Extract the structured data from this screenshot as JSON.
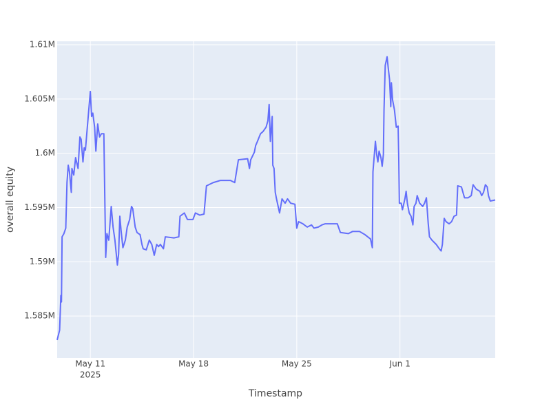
{
  "chart_data": {
    "type": "line",
    "y_label": "overall equity",
    "x_label": "Timestamp",
    "color": "#636efa",
    "grid": true,
    "x": [
      "2025-05-08T18:00",
      "2025-05-08T22:00",
      "2025-05-09T00:00",
      "2025-05-09T01:00",
      "2025-05-09T02:00",
      "2025-05-09T05:00",
      "2025-05-09T08:00",
      "2025-05-09T10:00",
      "2025-05-09T12:00",
      "2025-05-09T14:00",
      "2025-05-09T17:00",
      "2025-05-09T18:00",
      "2025-05-09T21:00",
      "2025-05-10T00:00",
      "2025-05-10T04:00",
      "2025-05-10T07:00",
      "2025-05-10T09:00",
      "2025-05-10T12:00",
      "2025-05-10T14:00",
      "2025-05-10T16:00",
      "2025-05-10T21:00",
      "2025-05-11T00:00",
      "2025-05-11T02:00",
      "2025-05-11T04:00",
      "2025-05-11T07:00",
      "2025-05-11T09:00",
      "2025-05-11T12:00",
      "2025-05-11T15:00",
      "2025-05-11T18:00",
      "2025-05-11T22:00",
      "2025-05-12T01:00",
      "2025-05-12T03:00",
      "2025-05-12T06:00",
      "2025-05-12T10:00",
      "2025-05-12T13:00",
      "2025-05-12T16:00",
      "2025-05-12T20:00",
      "2025-05-12T22:00",
      "2025-05-13T00:00",
      "2025-05-13T02:00",
      "2025-05-13T05:00",
      "2025-05-13T09:00",
      "2025-05-13T12:00",
      "2025-05-13T16:00",
      "2025-05-13T19:00",
      "2025-05-13T21:00",
      "2025-05-14T01:00",
      "2025-05-14T04:00",
      "2025-05-14T09:00",
      "2025-05-14T12:00",
      "2025-05-14T14:00",
      "2025-05-14T19:00",
      "2025-05-15T00:00",
      "2025-05-15T04:00",
      "2025-05-15T08:00",
      "2025-05-15T12:00",
      "2025-05-15T15:00",
      "2025-05-15T18:00",
      "2025-05-15T23:00",
      "2025-05-16T02:00",
      "2025-05-16T16:00",
      "2025-05-17T00:00",
      "2025-05-17T02:00",
      "2025-05-17T09:00",
      "2025-05-17T14:00",
      "2025-05-17T23:00",
      "2025-05-18T03:00",
      "2025-05-18T10:00",
      "2025-05-18T17:00",
      "2025-05-18T21:00",
      "2025-05-19T08:00",
      "2025-05-19T20:00",
      "2025-05-20T12:00",
      "2025-05-20T19:00",
      "2025-05-21T01:00",
      "2025-05-21T16:00",
      "2025-05-21T19:00",
      "2025-05-21T21:00",
      "2025-05-22T03:00",
      "2025-05-22T05:00",
      "2025-05-22T08:00",
      "2025-05-22T13:00",
      "2025-05-22T17:00",
      "2025-05-22T22:00",
      "2025-05-23T01:00",
      "2025-05-23T03:00",
      "2025-05-23T05:00",
      "2025-05-23T08:00",
      "2025-05-23T09:00",
      "2025-05-23T11:00",
      "2025-05-23T13:00",
      "2025-05-23T15:00",
      "2025-05-23T20:00",
      "2025-05-24T00:00",
      "2025-05-24T05:00",
      "2025-05-24T09:00",
      "2025-05-24T14:00",
      "2025-05-24T21:00",
      "2025-05-25T00:00",
      "2025-05-25T03:00",
      "2025-05-25T10:00",
      "2025-05-25T17:00",
      "2025-05-26T00:00",
      "2025-05-26T04:00",
      "2025-05-26T11:00",
      "2025-05-26T17:00",
      "2025-05-26T22:00",
      "2025-05-27T18:00",
      "2025-05-27T23:00",
      "2025-05-28T12:00",
      "2025-05-28T19:00",
      "2025-05-29T06:00",
      "2025-05-29T15:00",
      "2025-05-30T00:00",
      "2025-05-30T03:00",
      "2025-05-30T04:00",
      "2025-05-30T08:00",
      "2025-05-30T10:00",
      "2025-05-30T12:00",
      "2025-05-30T14:00",
      "2025-05-30T17:00",
      "2025-05-30T19:00",
      "2025-05-30T21:00",
      "2025-05-30T22:00",
      "2025-05-31T00:00",
      "2025-05-31T03:00",
      "2025-05-31T05:00",
      "2025-05-31T07:00",
      "2025-05-31T09:00",
      "2025-05-31T10:00",
      "2025-05-31T12:00",
      "2025-05-31T15:00",
      "2025-05-31T18:00",
      "2025-05-31T21:00",
      "2025-05-31T22:00",
      "2025-05-31T23:00",
      "2025-06-01T02:00",
      "2025-06-01T04:00",
      "2025-06-01T08:00",
      "2025-06-01T10:00",
      "2025-06-01T12:00",
      "2025-06-01T15:00",
      "2025-06-01T18:00",
      "2025-06-01T21:00",
      "2025-06-01T23:00",
      "2025-06-02T02:00",
      "2025-06-02T04:00",
      "2025-06-02T08:00",
      "2025-06-02T13:00",
      "2025-06-02T16:00",
      "2025-06-02T19:00",
      "2025-06-02T22:00",
      "2025-06-03T00:00",
      "2025-06-03T04:00",
      "2025-06-03T11:00",
      "2025-06-03T16:00",
      "2025-06-03T19:00",
      "2025-06-03T21:00",
      "2025-06-04T00:00",
      "2025-06-04T03:00",
      "2025-06-04T08:00",
      "2025-06-04T12:00",
      "2025-06-04T16:00",
      "2025-06-04T20:00",
      "2025-06-04T22:00",
      "2025-06-05T04:00",
      "2025-06-05T09:00",
      "2025-06-05T15:00",
      "2025-06-05T20:00",
      "2025-06-05T23:00",
      "2025-06-06T04:00",
      "2025-06-06T10:00",
      "2025-06-06T13:00",
      "2025-06-06T16:00",
      "2025-06-06T19:00",
      "2025-06-06T22:00",
      "2025-06-07T00:00",
      "2025-06-07T03:00",
      "2025-06-07T11:00"
    ],
    "values": [
      1582800,
      1583700,
      1586900,
      1586300,
      1592300,
      1592600,
      1593100,
      1597300,
      1598900,
      1598300,
      1596400,
      1598600,
      1598000,
      1599600,
      1598600,
      1601500,
      1601300,
      1599200,
      1600500,
      1600300,
      1603700,
      1605700,
      1603400,
      1603700,
      1602400,
      1600200,
      1602700,
      1601500,
      1601800,
      1601800,
      1590400,
      1592600,
      1592000,
      1595100,
      1593200,
      1592000,
      1589700,
      1590700,
      1594200,
      1592900,
      1591300,
      1592000,
      1593200,
      1593900,
      1595100,
      1594900,
      1593200,
      1592700,
      1592500,
      1591600,
      1591200,
      1591100,
      1592000,
      1591600,
      1590600,
      1591600,
      1591400,
      1591600,
      1591200,
      1592300,
      1592200,
      1592300,
      1594200,
      1594500,
      1593900,
      1593900,
      1594500,
      1594300,
      1594400,
      1597000,
      1597300,
      1597500,
      1597500,
      1597300,
      1599400,
      1599500,
      1598600,
      1599400,
      1600100,
      1600700,
      1601100,
      1601800,
      1602000,
      1602400,
      1603000,
      1604500,
      1601100,
      1603400,
      1598900,
      1598600,
      1596400,
      1595800,
      1594500,
      1595800,
      1595400,
      1595800,
      1595400,
      1595300,
      1593100,
      1593700,
      1593500,
      1593200,
      1593400,
      1593100,
      1593200,
      1593400,
      1593500,
      1593500,
      1592700,
      1592600,
      1592800,
      1592800,
      1592500,
      1592100,
      1591300,
      1598300,
      1601100,
      1599900,
      1599200,
      1600200,
      1599600,
      1598800,
      1599900,
      1604000,
      1608100,
      1608900,
      1607800,
      1606800,
      1604300,
      1606500,
      1604900,
      1604000,
      1602400,
      1602500,
      1599600,
      1595400,
      1595400,
      1594800,
      1595800,
      1596500,
      1595400,
      1594500,
      1594200,
      1593400,
      1595100,
      1595400,
      1596100,
      1595400,
      1595100,
      1595400,
      1595900,
      1593500,
      1592300,
      1592000,
      1591600,
      1591200,
      1591000,
      1591600,
      1594000,
      1593700,
      1593500,
      1593700,
      1594200,
      1594300,
      1597000,
      1596900,
      1595900,
      1595900,
      1596100,
      1597100,
      1596700,
      1596500,
      1596100,
      1596400,
      1597100,
      1596900,
      1596100,
      1595600,
      1595700
    ],
    "xlim": [
      "2025-05-08T18:00",
      "2025-06-07T11:00"
    ],
    "xticks": [
      {
        "value": "2025-05-11T00:00",
        "label": "May 11"
      },
      {
        "value": "2025-05-18T00:00",
        "label": "May 18"
      },
      {
        "value": "2025-05-25T00:00",
        "label": "May 25"
      },
      {
        "value": "2025-06-01T00:00",
        "label": "Jun 1"
      }
    ],
    "xtick_sublabel": "2025",
    "ylim": [
      1581140,
      1610320
    ],
    "yticks": [
      {
        "value": 1585000,
        "label": "1.585M"
      },
      {
        "value": 1590000,
        "label": "1.59M"
      },
      {
        "value": 1595000,
        "label": "1.595M"
      },
      {
        "value": 1600000,
        "label": "1.6M"
      },
      {
        "value": 1605000,
        "label": "1.605M"
      },
      {
        "value": 1610000,
        "label": "1.61M"
      }
    ]
  }
}
